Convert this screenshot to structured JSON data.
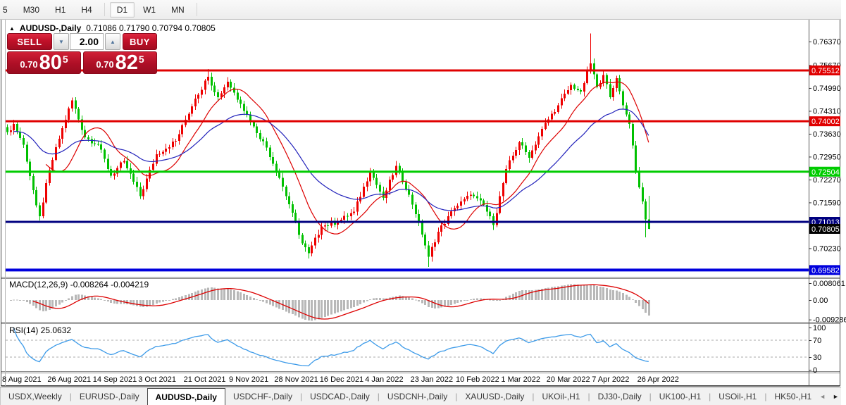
{
  "icons": {
    "collapse": "▲",
    "spin_down": "▼",
    "spin_up": "▲",
    "tab_scroll_left": "◄",
    "tab_scroll_right": "►"
  },
  "toolbar": {
    "timeframes": [
      {
        "label": "5",
        "active": false,
        "sep_after": false
      },
      {
        "label": "M30",
        "active": false,
        "sep_after": false
      },
      {
        "label": "H1",
        "active": false,
        "sep_after": false
      },
      {
        "label": "H4",
        "active": false,
        "sep_after": true
      },
      {
        "label": "D1",
        "active": true,
        "sep_after": false
      },
      {
        "label": "W1",
        "active": false,
        "sep_after": false
      },
      {
        "label": "MN",
        "active": false,
        "sep_after": true
      }
    ]
  },
  "chart_header": {
    "symbol": "AUDUSD-,Daily",
    "ohlc_text": "0.71086 0.71790 0.70794 0.70805"
  },
  "trade_widget": {
    "sell_label": "SELL",
    "buy_label": "BUY",
    "volume": "2.00",
    "sell_price_small": "0.70",
    "sell_price_big": "80",
    "sell_price_sup": "5",
    "buy_price_small": "0.70",
    "buy_price_big": "82",
    "buy_price_sup": "5"
  },
  "chart_data": {
    "type": "candlestick",
    "symbol": "AUDUSD-,Daily",
    "ohlc": {
      "open": 0.71086,
      "high": 0.7179,
      "low": 0.70794,
      "close": 0.70805
    },
    "bar_count": 199,
    "bars_per_xlabel": 14,
    "x_labels": [
      "8 Aug 2021",
      "26 Aug 2021",
      "14 Sep 2021",
      "3 Oct 2021",
      "21 Oct 2021",
      "9 Nov 2021",
      "28 Nov 2021",
      "16 Dec 2021",
      "4 Jan 2022",
      "23 Jan 2022",
      "10 Feb 2022",
      "1 Mar 2022",
      "20 Mar 2022",
      "7 Apr 2022",
      "26 Apr 2022"
    ],
    "price_keyframes": [
      [
        0,
        0.7368
      ],
      [
        2,
        0.7392
      ],
      [
        5,
        0.733
      ],
      [
        9,
        0.715
      ],
      [
        10,
        0.7118
      ],
      [
        13,
        0.7255
      ],
      [
        17,
        0.738
      ],
      [
        20,
        0.7462
      ],
      [
        24,
        0.7352
      ],
      [
        28,
        0.7332
      ],
      [
        32,
        0.7238
      ],
      [
        36,
        0.7282
      ],
      [
        41,
        0.7178
      ],
      [
        46,
        0.7302
      ],
      [
        52,
        0.7342
      ],
      [
        58,
        0.7468
      ],
      [
        62,
        0.7532
      ],
      [
        65,
        0.7472
      ],
      [
        68,
        0.7518
      ],
      [
        72,
        0.7452
      ],
      [
        76,
        0.7385
      ],
      [
        80,
        0.7322
      ],
      [
        84,
        0.7232
      ],
      [
        88,
        0.7128
      ],
      [
        91,
        0.7038
      ],
      [
        93,
        0.7008
      ],
      [
        97,
        0.7088
      ],
      [
        102,
        0.7102
      ],
      [
        107,
        0.7132
      ],
      [
        112,
        0.7252
      ],
      [
        116,
        0.7172
      ],
      [
        120,
        0.7268
      ],
      [
        124,
        0.7182
      ],
      [
        127,
        0.7102
      ],
      [
        130,
        0.6998
      ],
      [
        133,
        0.7072
      ],
      [
        138,
        0.7142
      ],
      [
        143,
        0.7182
      ],
      [
        147,
        0.7152
      ],
      [
        150,
        0.7092
      ],
      [
        154,
        0.7258
      ],
      [
        158,
        0.7338
      ],
      [
        161,
        0.7292
      ],
      [
        165,
        0.7378
      ],
      [
        170,
        0.7448
      ],
      [
        174,
        0.7508
      ],
      [
        177,
        0.7488
      ],
      [
        180,
        0.7572
      ],
      [
        182,
        0.7502
      ],
      [
        184,
        0.7538
      ],
      [
        186,
        0.7472
      ],
      [
        188,
        0.7528
      ],
      [
        190,
        0.7448
      ],
      [
        192,
        0.7392
      ],
      [
        194,
        0.7252
      ],
      [
        196,
        0.7162
      ],
      [
        197,
        0.7109
      ],
      [
        198,
        0.70805
      ]
    ],
    "wick_overrides": [
      {
        "i": 10,
        "low": 0.7106
      },
      {
        "i": 62,
        "high": 0.7555
      },
      {
        "i": 93,
        "low": 0.6993
      },
      {
        "i": 130,
        "low": 0.6967
      },
      {
        "i": 180,
        "high": 0.7661
      },
      {
        "i": 197,
        "low": 0.7055
      },
      {
        "i": 198,
        "high": 0.7179,
        "low": 0.70794
      }
    ],
    "noise_amp": 0.0014,
    "candle_up_color": "#ee0000",
    "candle_down_color": "#00c000",
    "moving_averages": [
      {
        "period": 13,
        "type": "sma",
        "color": "#dd0000"
      },
      {
        "period": 34,
        "type": "ema",
        "color": "#2323bb"
      }
    ],
    "price_axis": {
      "ticks": [
        0.7637,
        0.7567,
        0.7499,
        0.7431,
        0.7363,
        0.7295,
        0.7227,
        0.7159,
        0.7023
      ],
      "decimals": 5
    },
    "hlines": [
      {
        "price": 0.75512,
        "label": "0.75512",
        "color": "#e00000",
        "width": 3,
        "text": "#ffffff"
      },
      {
        "price": 0.74002,
        "label": "0.74002",
        "color": "#e00000",
        "width": 3,
        "text": "#ffffff"
      },
      {
        "price": 0.72504,
        "label": "0.72504",
        "color": "#00cc00",
        "width": 3,
        "text": "#ffffff"
      },
      {
        "price": 0.71013,
        "label": "0.71013",
        "color": "#000080",
        "width": 3,
        "text": "#ffffff"
      },
      {
        "price": 0.69582,
        "label": "0.69582",
        "color": "#0000dd",
        "width": 4,
        "text": "#ffffff"
      }
    ],
    "current_price": {
      "value": 0.70805,
      "label": "0.70805",
      "badge_bg": "#000000",
      "text": "#ffffff"
    },
    "macd": {
      "label": "MACD(12,26,9) -0.008264 -0.004219",
      "fast": 12,
      "slow": 26,
      "signal": 9,
      "values_shown": [
        -0.008264,
        -0.004219
      ],
      "axis_ticks": [
        "0.008061",
        "0.00",
        "-0.009286"
      ],
      "hist_color": "#b8b8b8",
      "signal_color": "#dd0000"
    },
    "rsi": {
      "label": "RSI(14) 25.0632",
      "period": 14,
      "value_shown": 25.0632,
      "axis_ticks": [
        100,
        70,
        30,
        0
      ],
      "levels": [
        70,
        30
      ],
      "color": "#3d9be9",
      "level_color": "#a8a8a8"
    }
  },
  "tabbar": {
    "tabs": [
      {
        "label": "USDX,Weekly",
        "active": false
      },
      {
        "label": "EURUSD-,Daily",
        "active": false
      },
      {
        "label": "AUDUSD-,Daily",
        "active": true
      },
      {
        "label": "USDCHF-,Daily",
        "active": false
      },
      {
        "label": "USDCAD-,Daily",
        "active": false
      },
      {
        "label": "USDCNH-,Daily",
        "active": false
      },
      {
        "label": "XAUUSD-,Daily",
        "active": false
      },
      {
        "label": "UKOil-,H1",
        "active": false
      },
      {
        "label": "DJ30-,Daily",
        "active": false
      },
      {
        "label": "UK100-,H1",
        "active": false
      },
      {
        "label": "USOil-,H1",
        "active": false
      },
      {
        "label": "HK50-,H1",
        "active": false
      }
    ]
  }
}
